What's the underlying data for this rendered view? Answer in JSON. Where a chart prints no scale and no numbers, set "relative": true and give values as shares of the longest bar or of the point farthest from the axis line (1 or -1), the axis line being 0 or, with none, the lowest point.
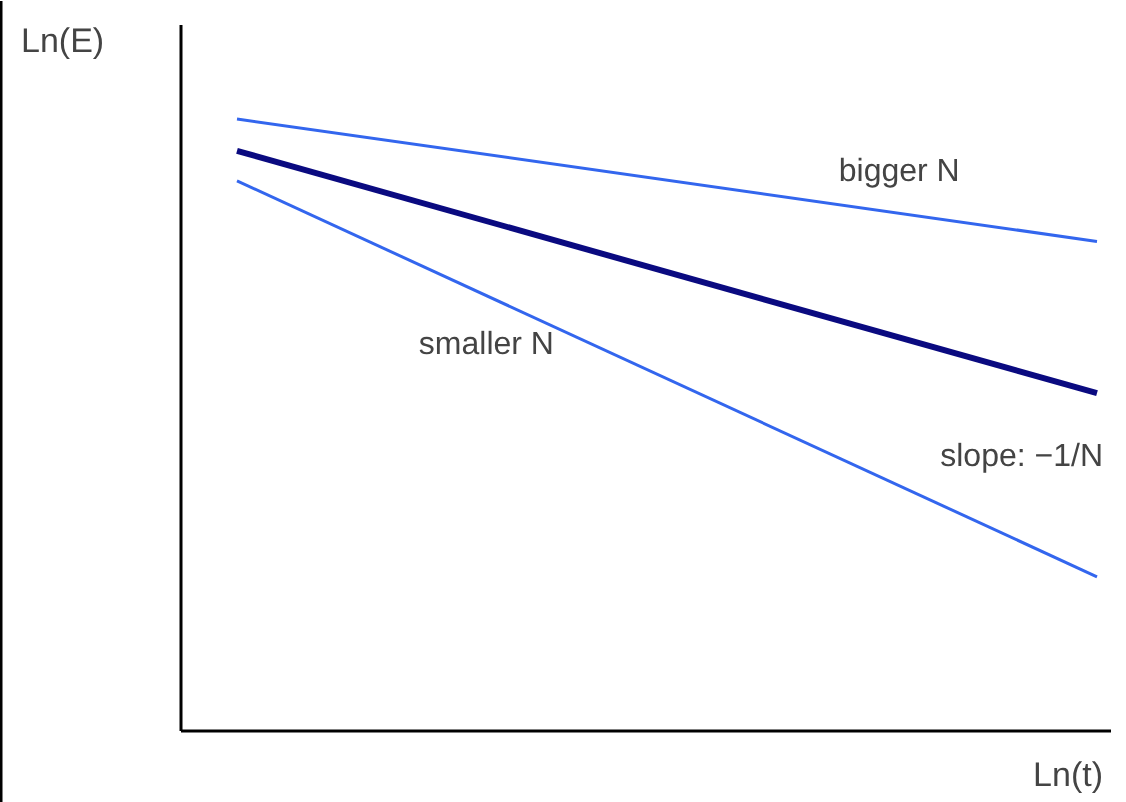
{
  "chart_data": {
    "type": "line",
    "relative": true,
    "xlabel": "Ln(t)",
    "ylabel": "Ln(E)",
    "categories": [
      null,
      null
    ],
    "legend": false,
    "series": [
      {
        "name": "bigger N",
        "color": "#3366ee",
        "values": [
          1,
          0.8
        ]
      },
      {
        "color": "#0a0a80",
        "values": [
          0.948,
          0.552
        ]
      },
      {
        "name": "smaller N",
        "color": "#3366ee",
        "values": [
          0.899,
          0.252
        ]
      }
    ],
    "annotations": [
      "slope: −1/N"
    ]
  }
}
